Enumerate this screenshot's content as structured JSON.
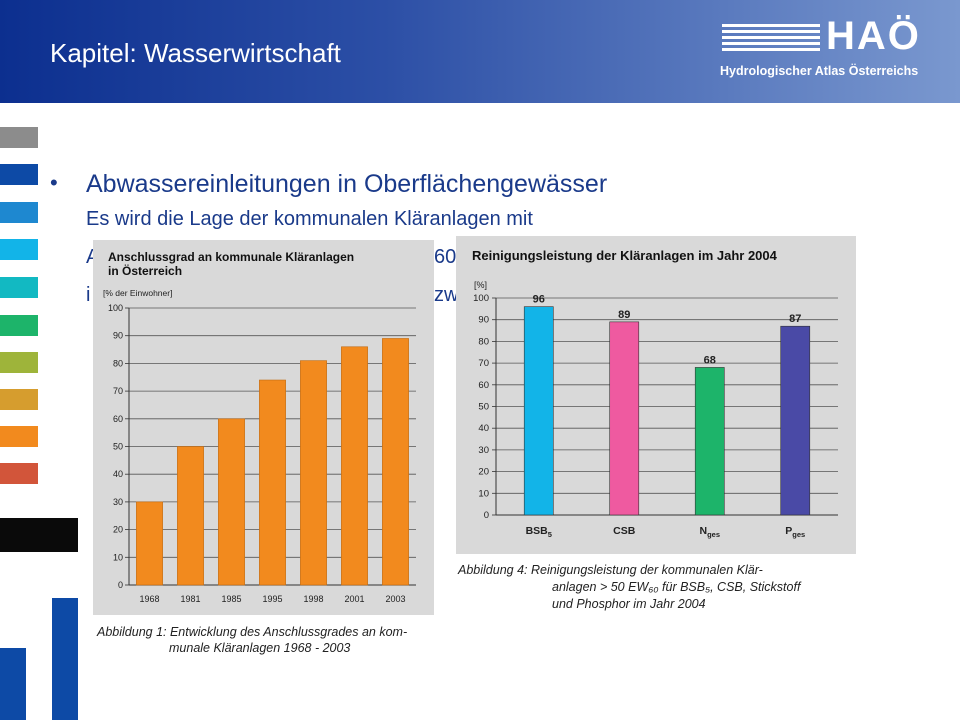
{
  "header": {
    "title": "Kapitel: Wasserwirtschaft",
    "logo_text": "HAÖ",
    "logo_subtitle": "Hydrologischer Atlas Österreichs"
  },
  "sidebar_colors": [
    "#8c8c8c",
    "#0d4aa6",
    "#1e88d0",
    "#12b4e8",
    "#12b9c2",
    "#1db46a",
    "#9eb43a",
    "#d69d2e",
    "#f28a1e",
    "#d2553a"
  ],
  "content": {
    "bullet": "•",
    "heading": "Abwassereinleitungen in Oberflächengewässer",
    "line1": "Es wird die Lage der kommunalen Kläranlagen mit",
    "line2_left": "A",
    "line2_right": "60",
    "line3_left": "i",
    "line3_right": "zw"
  },
  "figure1": {
    "title_line1": "Anschlussgrad an kommunale Kläranlagen",
    "title_line2": "in Österreich",
    "caption_line1": "Abbildung 1: Entwicklung des Anschlussgrades an kom-",
    "caption_line2": "munale Kläranlagen 1968 - 2003"
  },
  "figure2": {
    "title": "Reinigungsleistung der Kläranlagen im Jahr 2004",
    "caption_line1": "Abbildung 4:  Reinigungsleistung der kommunalen Klär-",
    "caption_line2": "anlagen > 50 EW₆₀ für BSB₅, CSB, Stickstoff",
    "caption_line3": "und Phosphor im Jahr 2004"
  },
  "chart_data": [
    {
      "type": "bar",
      "title": "Anschlussgrad an kommunale Kläranlagen in Österreich",
      "ylabel": "[% der Einwohner]",
      "categories": [
        "1968",
        "1981",
        "1985",
        "1995",
        "1998",
        "2001",
        "2003"
      ],
      "values": [
        30,
        50,
        60,
        74,
        81,
        86,
        89
      ],
      "ylim": [
        0,
        100
      ],
      "yticks": [
        0,
        10,
        20,
        30,
        40,
        50,
        60,
        70,
        80,
        90,
        100
      ],
      "grid": true,
      "bar_color": "#f28a1e"
    },
    {
      "type": "bar",
      "title": "Reinigungsleistung der Kläranlagen im Jahr 2004",
      "ylabel": "[%]",
      "categories": [
        {
          "main": "BSB",
          "sub": "5"
        },
        {
          "main": "CSB",
          "sub": ""
        },
        {
          "main": "N",
          "sub": "ges"
        },
        {
          "main": "P",
          "sub": "ges"
        }
      ],
      "values": [
        96,
        89,
        68,
        87
      ],
      "data_labels": [
        "96",
        "89",
        "68",
        "87"
      ],
      "ylim": [
        0,
        100
      ],
      "yticks": [
        0,
        10,
        20,
        30,
        40,
        50,
        60,
        70,
        80,
        90,
        100
      ],
      "grid": true,
      "bar_colors": [
        "#12b4e8",
        "#ef5aa0",
        "#1db46a",
        "#4a4aa6"
      ]
    }
  ]
}
